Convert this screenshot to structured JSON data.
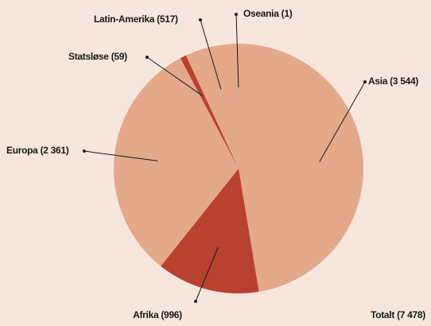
{
  "chart_data": {
    "type": "pie",
    "values": [
      3544,
      996,
      2361,
      59,
      517,
      1
    ],
    "value_labels": [
      "Asia (3 544)",
      "Afrika (996)",
      "Europa (2 361)",
      "Statsløse (59)",
      "Latin-Amerika (517)",
      "Oseania (1)"
    ],
    "colors": [
      "#e3a98a",
      "#b94130",
      "#e3a98a",
      "#b94130",
      "#e3a98a",
      "#b94130"
    ],
    "total_label": "Totalt (7 478)"
  }
}
